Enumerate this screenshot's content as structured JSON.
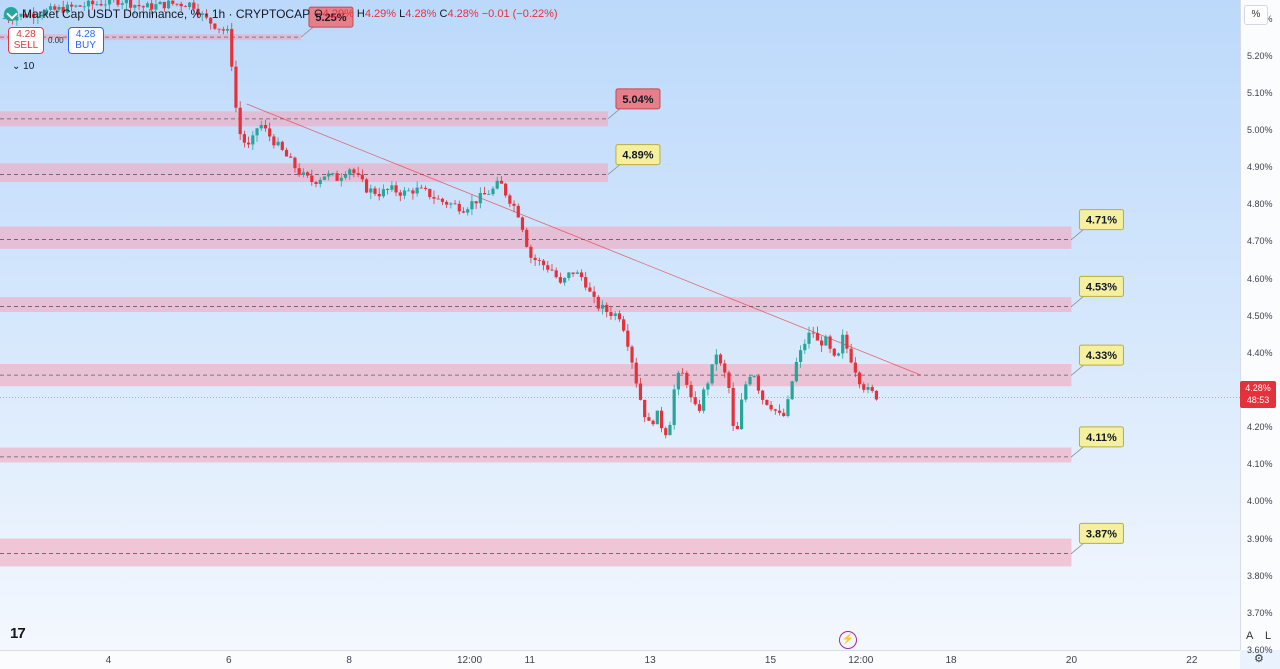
{
  "header": {
    "symbol": "Market Cap USDT Dominance, % · 1h · CRYPTOCAP",
    "o_label": "O",
    "o": "4.29%",
    "h_label": "H",
    "h": "4.29%",
    "l_label": "L",
    "l": "4.28%",
    "c_label": "C",
    "c": "4.28%",
    "change": "−0.01 (−0.22%)"
  },
  "trade": {
    "sell_price": "4.28",
    "sell_label": "SELL",
    "spread": "0.00",
    "buy_price": "4.28",
    "buy_label": "BUY"
  },
  "indicators_toggle": "10",
  "axis_unit": "%",
  "current_price": {
    "value": "4.28%",
    "countdown": "48:53"
  },
  "colors": {
    "up": "#26a69a",
    "down": "#e5323a",
    "zone": "#f3a6bd",
    "trendline": "#e5323a"
  },
  "icons": {
    "tv_logo": "tradingview-logo-icon",
    "flash": "lightning-icon",
    "settings": "gear-icon"
  },
  "tv_logo": "17",
  "flash_glyph": "⚡",
  "auto_btn": "A",
  "log_btn": "L",
  "settings_glyph": "⚙",
  "chart_data": {
    "type": "candlestick",
    "y_ticks": [
      "5.30%",
      "5.20%",
      "5.10%",
      "5.00%",
      "4.90%",
      "4.80%",
      "4.70%",
      "4.60%",
      "4.50%",
      "4.40%",
      "4.30%",
      "4.20%",
      "4.10%",
      "4.00%",
      "3.90%",
      "3.80%",
      "3.70%",
      "3.60%"
    ],
    "y_tick_values": [
      5.3,
      5.2,
      5.1,
      5.0,
      4.9,
      4.8,
      4.7,
      4.6,
      4.5,
      4.4,
      4.3,
      4.2,
      4.1,
      4.0,
      3.9,
      3.8,
      3.7,
      3.6
    ],
    "ylim": [
      3.6,
      5.35
    ],
    "x_ticks": [
      "4",
      "6",
      "8",
      "12:00",
      "11",
      "13",
      "15",
      "12:00",
      "18",
      "20",
      "22"
    ],
    "x_tick_days": [
      4,
      6,
      8,
      10,
      11,
      13,
      15,
      16.5,
      18,
      20,
      22
    ],
    "xlim": [
      2.2,
      22.8
    ],
    "zones": [
      {
        "label": "5.25%",
        "level": 5.25,
        "low": 5.242,
        "high": 5.258,
        "start_day": 2.2,
        "end_day": 7.2,
        "tag": "red"
      },
      {
        "label": "5.04%",
        "level": 5.03,
        "low": 5.01,
        "high": 5.05,
        "start_day": 2.2,
        "end_day": 12.3,
        "tag": "red"
      },
      {
        "label": "4.89%",
        "level": 4.88,
        "low": 4.86,
        "high": 4.91,
        "start_day": 2.2,
        "end_day": 12.3,
        "tag": "yellow"
      },
      {
        "label": "4.71%",
        "level": 4.705,
        "low": 4.68,
        "high": 4.74,
        "start_day": 2.2,
        "end_day": 20.0,
        "tag": "yellow"
      },
      {
        "label": "4.53%",
        "level": 4.525,
        "low": 4.51,
        "high": 4.55,
        "start_day": 2.2,
        "end_day": 20.0,
        "tag": "yellow"
      },
      {
        "label": "4.33%",
        "level": 4.34,
        "low": 4.31,
        "high": 4.37,
        "start_day": 2.2,
        "end_day": 20.0,
        "tag": "yellow"
      },
      {
        "label": "4.11%",
        "level": 4.12,
        "low": 4.105,
        "high": 4.145,
        "start_day": 2.2,
        "end_day": 20.0,
        "tag": "yellow"
      },
      {
        "label": "3.87%",
        "level": 3.86,
        "low": 3.825,
        "high": 3.9,
        "start_day": 2.2,
        "end_day": 20.0,
        "tag": "yellow"
      }
    ],
    "trendline": {
      "start": [
        6.3,
        5.07
      ],
      "end": [
        17.5,
        4.34
      ]
    },
    "price_line": 4.28,
    "series_path": [
      [
        2.2,
        5.3
      ],
      [
        2.6,
        5.31
      ],
      [
        3.0,
        5.32
      ],
      [
        3.4,
        5.33
      ],
      [
        3.8,
        5.34
      ],
      [
        4.2,
        5.35
      ],
      [
        4.6,
        5.33
      ],
      [
        5.0,
        5.34
      ],
      [
        5.4,
        5.34
      ],
      [
        5.6,
        5.3
      ],
      [
        5.8,
        5.28
      ],
      [
        6.0,
        5.26
      ],
      [
        6.05,
        5.18
      ],
      [
        6.1,
        5.08
      ],
      [
        6.2,
        4.98
      ],
      [
        6.35,
        4.95
      ],
      [
        6.5,
        5.02
      ],
      [
        6.7,
        4.98
      ],
      [
        6.85,
        4.95
      ],
      [
        7.0,
        4.92
      ],
      [
        7.2,
        4.88
      ],
      [
        7.4,
        4.86
      ],
      [
        7.6,
        4.88
      ],
      [
        7.8,
        4.87
      ],
      [
        8.0,
        4.9
      ],
      [
        8.1,
        4.88
      ],
      [
        8.3,
        4.84
      ],
      [
        8.5,
        4.83
      ],
      [
        8.7,
        4.84
      ],
      [
        8.9,
        4.83
      ],
      [
        9.1,
        4.84
      ],
      [
        9.3,
        4.83
      ],
      [
        9.5,
        4.81
      ],
      [
        9.7,
        4.8
      ],
      [
        9.9,
        4.79
      ],
      [
        10.0,
        4.8
      ],
      [
        10.2,
        4.82
      ],
      [
        10.4,
        4.84
      ],
      [
        10.5,
        4.86
      ],
      [
        10.6,
        4.83
      ],
      [
        10.8,
        4.78
      ],
      [
        10.9,
        4.73
      ],
      [
        11.0,
        4.66
      ],
      [
        11.2,
        4.64
      ],
      [
        11.4,
        4.62
      ],
      [
        11.5,
        4.58
      ],
      [
        11.7,
        4.62
      ],
      [
        11.9,
        4.6
      ],
      [
        12.0,
        4.56
      ],
      [
        12.1,
        4.53
      ],
      [
        12.3,
        4.51
      ],
      [
        12.5,
        4.5
      ],
      [
        12.6,
        4.45
      ],
      [
        12.7,
        4.38
      ],
      [
        12.8,
        4.3
      ],
      [
        12.9,
        4.24
      ],
      [
        13.0,
        4.2
      ],
      [
        13.1,
        4.24
      ],
      [
        13.2,
        4.2
      ],
      [
        13.3,
        4.18
      ],
      [
        13.4,
        4.3
      ],
      [
        13.5,
        4.35
      ],
      [
        13.6,
        4.33
      ],
      [
        13.7,
        4.26
      ],
      [
        13.8,
        4.24
      ],
      [
        13.9,
        4.3
      ],
      [
        14.0,
        4.34
      ],
      [
        14.1,
        4.4
      ],
      [
        14.2,
        4.35
      ],
      [
        14.3,
        4.33
      ],
      [
        14.35,
        4.2
      ],
      [
        14.45,
        4.19
      ],
      [
        14.55,
        4.3
      ],
      [
        14.7,
        4.36
      ],
      [
        14.85,
        4.28
      ],
      [
        15.0,
        4.26
      ],
      [
        15.1,
        4.24
      ],
      [
        15.2,
        4.22
      ],
      [
        15.3,
        4.27
      ],
      [
        15.4,
        4.36
      ],
      [
        15.5,
        4.4
      ],
      [
        15.6,
        4.44
      ],
      [
        15.7,
        4.46
      ],
      [
        15.8,
        4.42
      ],
      [
        15.9,
        4.44
      ],
      [
        16.0,
        4.4
      ],
      [
        16.1,
        4.37
      ],
      [
        16.2,
        4.44
      ],
      [
        16.3,
        4.4
      ],
      [
        16.4,
        4.36
      ],
      [
        16.5,
        4.32
      ],
      [
        16.6,
        4.3
      ],
      [
        16.7,
        4.29
      ],
      [
        16.8,
        4.28
      ]
    ]
  }
}
